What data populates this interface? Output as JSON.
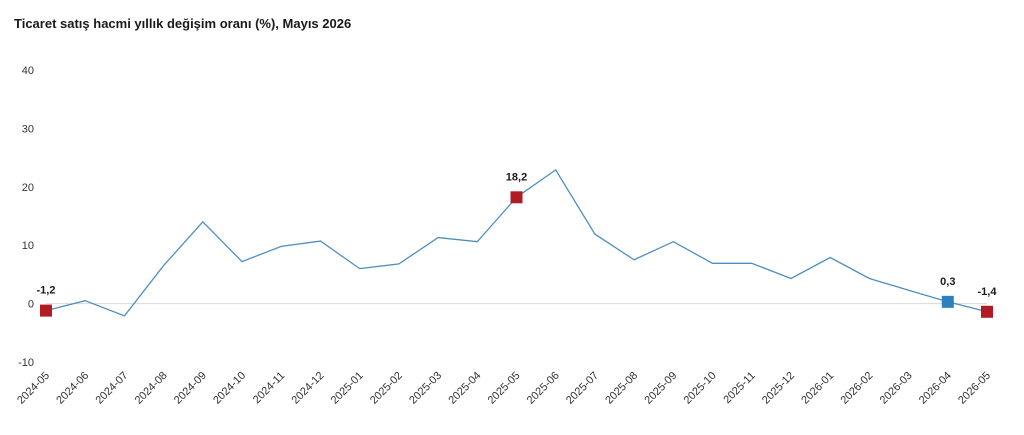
{
  "chart_data": {
    "type": "line",
    "title": "Ticaret satış hacmi yıllık değişim oranı (%), Mayıs 2026",
    "xlabel": "",
    "ylabel": "",
    "ylim": [
      -10,
      40
    ],
    "yticks": [
      -10,
      0,
      10,
      20,
      30,
      40
    ],
    "grid": false,
    "categories": [
      "2024-05",
      "2024-06",
      "2024-07",
      "2024-08",
      "2024-09",
      "2024-10",
      "2024-11",
      "2024-12",
      "2025-01",
      "2025-02",
      "2025-03",
      "2025-04",
      "2025-05",
      "2025-06",
      "2025-07",
      "2025-08",
      "2025-09",
      "2025-10",
      "2025-11",
      "2025-12",
      "2026-01",
      "2026-02",
      "2026-03",
      "2026-04",
      "2026-05"
    ],
    "series": [
      {
        "values": [
          -1.2,
          0.5,
          -2.1,
          6.5,
          14.0,
          7.2,
          9.8,
          10.7,
          6.0,
          6.8,
          11.3,
          10.6,
          18.2,
          22.9,
          11.9,
          7.5,
          10.6,
          6.9,
          6.9,
          4.3,
          7.9,
          4.3,
          2.3,
          0.3,
          -1.4
        ],
        "color": "#4f8fc0"
      }
    ],
    "markers": [
      {
        "index": 0,
        "label": "-1,2",
        "color": "#b11c24"
      },
      {
        "index": 12,
        "label": "18,2",
        "color": "#b11c24"
      },
      {
        "index": 23,
        "label": "0,3",
        "color": "#2e7fbf"
      },
      {
        "index": 24,
        "label": "-1,4",
        "color": "#b11c24"
      }
    ],
    "zero_line_color": "#d9d9d9"
  }
}
